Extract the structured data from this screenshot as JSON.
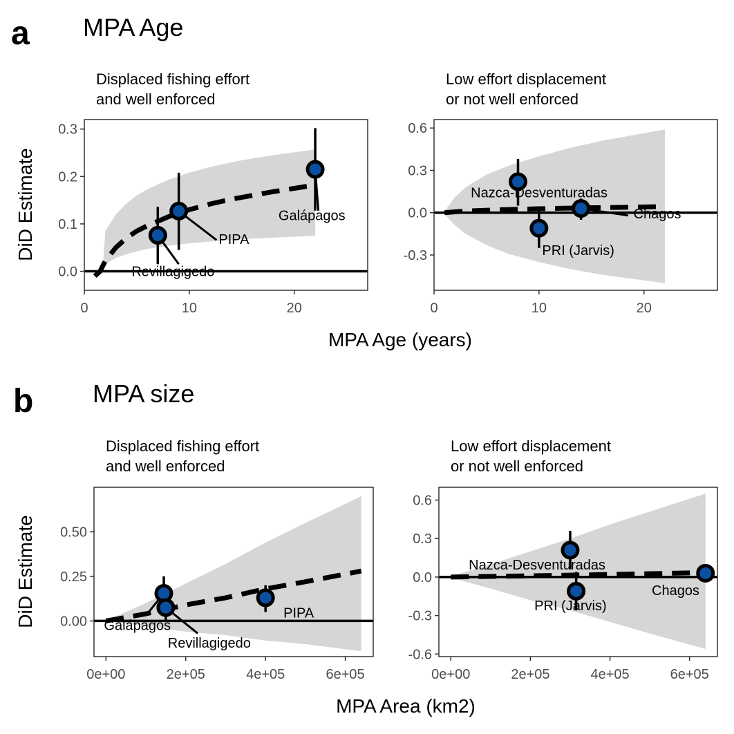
{
  "panels": [
    {
      "letter": "a",
      "title": "MPA Age",
      "xlabel": "MPA Age (years)",
      "ylabel": "DiD Estimate"
    },
    {
      "letter": "b",
      "title": "MPA size",
      "xlabel": "MPA Area (km2)",
      "ylabel": "DiD Estimate"
    }
  ],
  "chart_data": [
    {
      "type": "scatter",
      "subtitle_lines": [
        "Displaced fishing effort",
        "and well enforced"
      ],
      "xlim": [
        0,
        27
      ],
      "ylim": [
        -0.04,
        0.32
      ],
      "xticks": [
        0,
        10,
        20
      ],
      "xtick_labels": [
        "0",
        "10",
        "20"
      ],
      "yticks": [
        0.0,
        0.1,
        0.2,
        0.3
      ],
      "ytick_labels": [
        "0.0",
        "0.1",
        "0.2",
        "0.3"
      ],
      "hline": 0,
      "ribbon": [
        [
          1.8,
          0.0,
          0.02
        ],
        [
          2,
          0.015,
          0.085
        ],
        [
          3,
          0.028,
          0.12
        ],
        [
          4,
          0.036,
          0.143
        ],
        [
          5,
          0.042,
          0.16
        ],
        [
          6,
          0.047,
          0.173
        ],
        [
          8,
          0.054,
          0.193
        ],
        [
          10,
          0.059,
          0.208
        ],
        [
          12,
          0.063,
          0.22
        ],
        [
          14,
          0.066,
          0.23
        ],
        [
          16,
          0.069,
          0.238
        ],
        [
          18,
          0.071,
          0.245
        ],
        [
          20,
          0.073,
          0.251
        ],
        [
          22,
          0.075,
          0.257
        ]
      ],
      "trend": [
        [
          1.0,
          -0.01
        ],
        [
          1.5,
          0.0
        ],
        [
          2,
          0.022
        ],
        [
          3,
          0.05
        ],
        [
          4,
          0.07
        ],
        [
          5,
          0.085
        ],
        [
          6,
          0.096
        ],
        [
          8,
          0.115
        ],
        [
          10,
          0.13
        ],
        [
          12,
          0.142
        ],
        [
          14,
          0.152
        ],
        [
          16,
          0.16
        ],
        [
          18,
          0.168
        ],
        [
          20,
          0.175
        ],
        [
          22,
          0.182
        ]
      ],
      "points": [
        {
          "label": "Revillagigedo",
          "x": 7,
          "y": 0.076,
          "lo": 0.015,
          "hi": 0.136
        },
        {
          "label": "PIPA",
          "x": 9,
          "y": 0.127,
          "lo": 0.045,
          "hi": 0.208
        },
        {
          "label": "Galápagos",
          "x": 22,
          "y": 0.215,
          "lo": 0.128,
          "hi": 0.302
        }
      ],
      "point_labels": [
        {
          "text": "Revillagigedo",
          "x": 4.5,
          "y": -0.01
        },
        {
          "text": "PIPA",
          "x": 12.8,
          "y": 0.058
        },
        {
          "text": "Galápagos",
          "x": 18.5,
          "y": 0.108
        }
      ],
      "leaders": [
        [
          7,
          0.076,
          9,
          0.015
        ],
        [
          9,
          0.127,
          12.6,
          0.066
        ],
        [
          22,
          0.215,
          22.3,
          0.128
        ]
      ]
    },
    {
      "type": "scatter",
      "subtitle_lines": [
        "Low effort displacement",
        "or not well enforced"
      ],
      "xlim": [
        0,
        27
      ],
      "ylim": [
        -0.55,
        0.66
      ],
      "xticks": [
        0,
        10,
        20
      ],
      "xtick_labels": [
        "0",
        "10",
        "20"
      ],
      "yticks": [
        -0.3,
        0.0,
        0.3,
        0.6
      ],
      "ytick_labels": [
        "-0.3",
        "0.0",
        "0.3",
        "0.6"
      ],
      "hline": 0,
      "ribbon": [
        [
          1,
          -0.01,
          0.01
        ],
        [
          2,
          -0.09,
          0.11
        ],
        [
          3,
          -0.15,
          0.18
        ],
        [
          5,
          -0.23,
          0.27
        ],
        [
          7,
          -0.29,
          0.33
        ],
        [
          10,
          -0.35,
          0.4
        ],
        [
          13,
          -0.4,
          0.46
        ],
        [
          16,
          -0.44,
          0.51
        ],
        [
          19,
          -0.47,
          0.55
        ],
        [
          22,
          -0.5,
          0.59
        ]
      ],
      "trend": [
        [
          1,
          0.0
        ],
        [
          3,
          0.012
        ],
        [
          6,
          0.02
        ],
        [
          10,
          0.028
        ],
        [
          14,
          0.034
        ],
        [
          18,
          0.038
        ],
        [
          22,
          0.043
        ]
      ],
      "points": [
        {
          "label": "Nazca-Desventuradas",
          "x": 8,
          "y": 0.22,
          "lo": 0.05,
          "hi": 0.38
        },
        {
          "label": "PRI (Jarvis)",
          "x": 10,
          "y": -0.11,
          "lo": -0.25,
          "hi": 0.02
        },
        {
          "label": "Chagos",
          "x": 14,
          "y": 0.03,
          "lo": -0.05,
          "hi": 0.1
        }
      ],
      "point_labels": [
        {
          "text": "Nazca-Desventuradas",
          "x": 3.5,
          "y": 0.11
        },
        {
          "text": "PRI (Jarvis)",
          "x": 10.3,
          "y": -0.3
        },
        {
          "text": "Chagos",
          "x": 19.0,
          "y": -0.04
        }
      ],
      "leaders": [
        [
          14,
          0.03,
          18.5,
          -0.02
        ]
      ]
    },
    {
      "type": "scatter",
      "subtitle_lines": [
        "Displaced fishing effort",
        "and well enforced"
      ],
      "xlim": [
        -30000,
        670000
      ],
      "ylim": [
        -0.2,
        0.75
      ],
      "xticks": [
        0,
        200000,
        400000,
        600000
      ],
      "xtick_labels": [
        "0e+00",
        "2e+05",
        "4e+05",
        "6e+05"
      ],
      "yticks": [
        0.0,
        0.25,
        0.5
      ],
      "ytick_labels": [
        "0.00",
        "0.25",
        "0.50"
      ],
      "hline": 0,
      "ribbon": [
        [
          0,
          0.0,
          0.0
        ],
        [
          100000,
          -0.03,
          0.1
        ],
        [
          200000,
          -0.06,
          0.21
        ],
        [
          300000,
          -0.08,
          0.32
        ],
        [
          400000,
          -0.11,
          0.44
        ],
        [
          500000,
          -0.13,
          0.55
        ],
        [
          640000,
          -0.17,
          0.7
        ]
      ],
      "trend": [
        [
          0,
          0.0
        ],
        [
          100000,
          0.04
        ],
        [
          200000,
          0.09
        ],
        [
          300000,
          0.13
        ],
        [
          400000,
          0.18
        ],
        [
          500000,
          0.22
        ],
        [
          640000,
          0.28
        ]
      ],
      "points": [
        {
          "label": "Galápagos",
          "x": 145000,
          "y": 0.155,
          "lo": 0.06,
          "hi": 0.25
        },
        {
          "label": "Revillagigedo",
          "x": 150000,
          "y": 0.075,
          "lo": 0.0,
          "hi": 0.15
        },
        {
          "label": "PIPA",
          "x": 400000,
          "y": 0.13,
          "lo": 0.05,
          "hi": 0.2
        }
      ],
      "point_labels": [
        {
          "text": "Galápagos",
          "x": -5000,
          "y": -0.05
        },
        {
          "text": "Revillagigedo",
          "x": 155000,
          "y": -0.15
        },
        {
          "text": "PIPA",
          "x": 445000,
          "y": 0.02
        }
      ],
      "leaders": [
        [
          145000,
          0.155,
          100000,
          0.03
        ],
        [
          150000,
          0.075,
          230000,
          -0.07
        ]
      ]
    },
    {
      "type": "scatter",
      "subtitle_lines": [
        "Low effort displacement",
        "or not well enforced"
      ],
      "xlim": [
        -30000,
        670000
      ],
      "ylim": [
        -0.62,
        0.7
      ],
      "xticks": [
        0,
        200000,
        400000,
        600000
      ],
      "xtick_labels": [
        "0e+00",
        "2e+05",
        "4e+05",
        "6e+05"
      ],
      "yticks": [
        -0.6,
        -0.3,
        0.0,
        0.3,
        0.6
      ],
      "ytick_labels": [
        "-0.6",
        "-0.3",
        "0.0",
        "0.3",
        "0.6"
      ],
      "hline": 0,
      "ribbon": [
        [
          0,
          -0.005,
          0.005
        ],
        [
          100000,
          -0.09,
          0.1
        ],
        [
          200000,
          -0.18,
          0.2
        ],
        [
          300000,
          -0.26,
          0.3
        ],
        [
          400000,
          -0.35,
          0.41
        ],
        [
          500000,
          -0.44,
          0.51
        ],
        [
          640000,
          -0.56,
          0.65
        ]
      ],
      "trend": [
        [
          0,
          0.0
        ],
        [
          200000,
          0.01
        ],
        [
          400000,
          0.02
        ],
        [
          640000,
          0.035
        ]
      ],
      "points": [
        {
          "label": "Nazca-Desventuradas",
          "x": 300000,
          "y": 0.21,
          "lo": 0.06,
          "hi": 0.36
        },
        {
          "label": "PRI (Jarvis)",
          "x": 315000,
          "y": -0.11,
          "lo": -0.26,
          "hi": 0.04
        },
        {
          "label": "Chagos",
          "x": 640000,
          "y": 0.03,
          "lo": -0.03,
          "hi": 0.08
        }
      ],
      "point_labels": [
        {
          "text": "Nazca-Desventuradas",
          "x": 45000,
          "y": 0.06
        },
        {
          "text": "PRI (Jarvis)",
          "x": 210000,
          "y": -0.26
        },
        {
          "text": "Chagos",
          "x": 505000,
          "y": -0.14
        }
      ],
      "leaders": []
    }
  ]
}
